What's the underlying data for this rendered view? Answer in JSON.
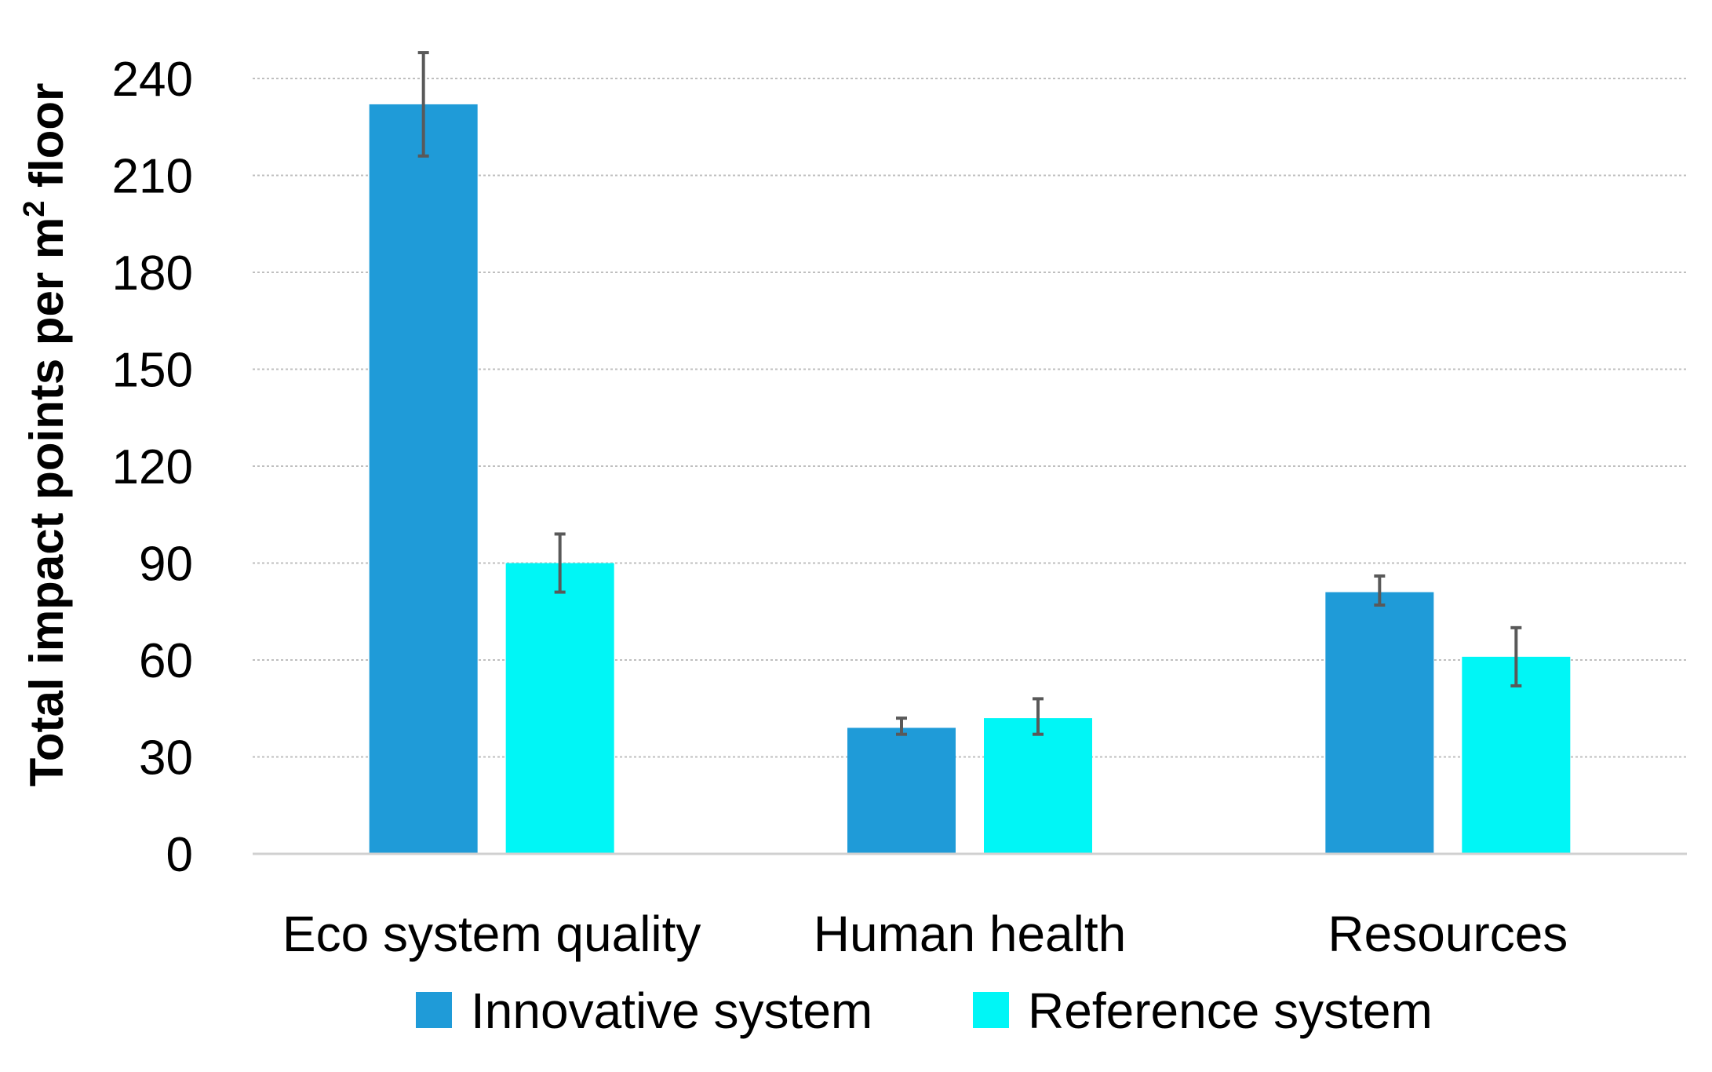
{
  "chart_data": {
    "type": "bar",
    "title": "",
    "xlabel": "",
    "ylabel": "Total impact points per m² floor",
    "ylabel_main": "Total impact points per m",
    "ylabel_sup": "2",
    "ylabel_tail": " floor",
    "categories": [
      "Eco system quality",
      "Human health",
      "Resources"
    ],
    "ylim": [
      0,
      240
    ],
    "yticks": [
      0,
      30,
      60,
      90,
      120,
      150,
      180,
      210,
      240
    ],
    "grid": true,
    "legend_position": "bottom",
    "series": [
      {
        "name": "Innovative system",
        "color": "#1f9bd8",
        "values": [
          232,
          39,
          81
        ],
        "error": [
          [
            216,
            248
          ],
          [
            37,
            42
          ],
          [
            77,
            86
          ]
        ]
      },
      {
        "name": "Reference system",
        "color": "#00f6f6",
        "values": [
          90,
          42,
          61
        ],
        "error": [
          [
            81,
            99
          ],
          [
            37,
            48
          ],
          [
            52,
            70
          ]
        ]
      }
    ]
  }
}
